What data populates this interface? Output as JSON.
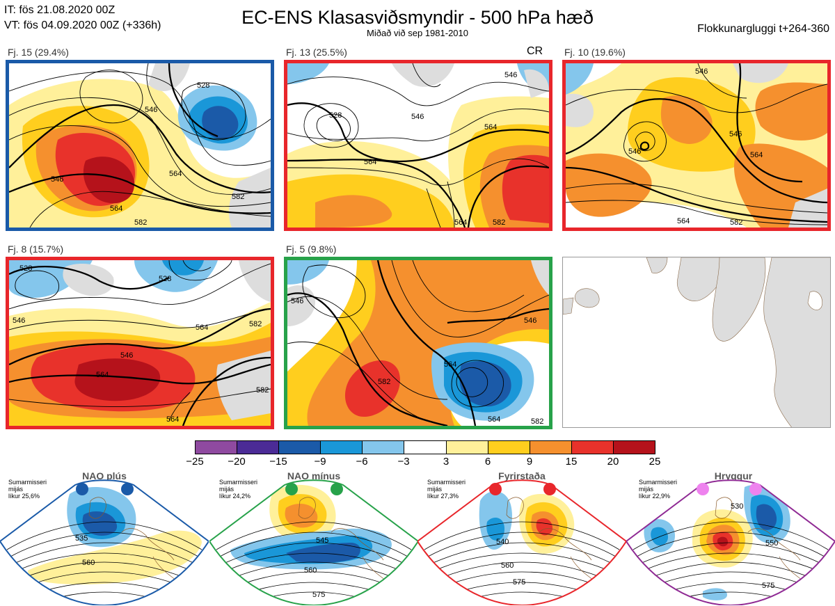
{
  "header": {
    "it_line": "IT: fös 21.08.2020 00Z",
    "vt_line": "VT: fös 04.09.2020 00Z  (+336h)",
    "title": "EC-ENS Klasasviðsmyndir - 500 hPa hæð",
    "subtitle": "Miðað við sep 1981-2010",
    "window": "Flokkunargluggi t+264-360"
  },
  "panels": [
    {
      "label": "Fj. 15 (29.4%)",
      "border_color": "#1a5aa8"
    },
    {
      "label": "Fj. 13 (25.5%)",
      "border_color": "#e8262b",
      "tag": "CR"
    },
    {
      "label": "Fj. 10 (19.6%)",
      "border_color": "#e8262b"
    },
    {
      "label": "Fj. 8 (15.7%)",
      "border_color": "#e8262b"
    },
    {
      "label": "Fj. 5 (9.8%)",
      "border_color": "#27a24a"
    }
  ],
  "contour_labels": {
    "p1": [
      "546",
      "564",
      "582",
      "546",
      "564",
      "582",
      "528"
    ],
    "p2": [
      "528",
      "546",
      "564",
      "564",
      "582",
      "564",
      "546"
    ],
    "p3": [
      "546",
      "546",
      "564",
      "564",
      "582",
      "546"
    ],
    "p4": [
      "528",
      "546",
      "564",
      "546",
      "564",
      "582",
      "528",
      "582",
      "564"
    ],
    "p5": [
      "546",
      "564",
      "582",
      "546",
      "564",
      "582"
    ]
  },
  "colorbar": {
    "ticks": [
      "−25",
      "−20",
      "−15",
      "−9",
      "−6",
      "−3",
      "3",
      "6",
      "9",
      "15",
      "20",
      "25"
    ],
    "colors": [
      "#8f4aa0",
      "#4b2b96",
      "#1b5aa8",
      "#1a97d8",
      "#84c6ec",
      "#ffffff",
      "#fff09a",
      "#ffce1e",
      "#f5902e",
      "#e8322b",
      "#b5121b"
    ]
  },
  "regimes": [
    {
      "name": "NAO plús",
      "line1": "Sumarmisseri",
      "line2": "mijás",
      "line3": "líkur 25,6%",
      "color": "#1a5aa8",
      "dot_color": "#1a5aa8",
      "labels": [
        "535",
        "560"
      ]
    },
    {
      "name": "NAO mínus",
      "line1": "Sumarmisseri",
      "line2": "mijás",
      "line3": "líkur 24,2%",
      "color": "#27a24a",
      "dot_color": "#27a24a",
      "labels": [
        "545",
        "560",
        "575"
      ]
    },
    {
      "name": "Fyrirstaða",
      "line1": "Sumarmisseri",
      "line2": "mijás",
      "line3": "líkur 27,3%",
      "color": "#e8262b",
      "dot_color": "#e8262b",
      "labels": [
        "540",
        "560",
        "575"
      ]
    },
    {
      "name": "Hryggur",
      "line1": "Sumarmisseri",
      "line2": "mijás",
      "line3": "líkur 22,9%",
      "color": "#8f2a94",
      "dot_color": "#ee82ee",
      "labels": [
        "530",
        "550",
        "575"
      ]
    }
  ]
}
